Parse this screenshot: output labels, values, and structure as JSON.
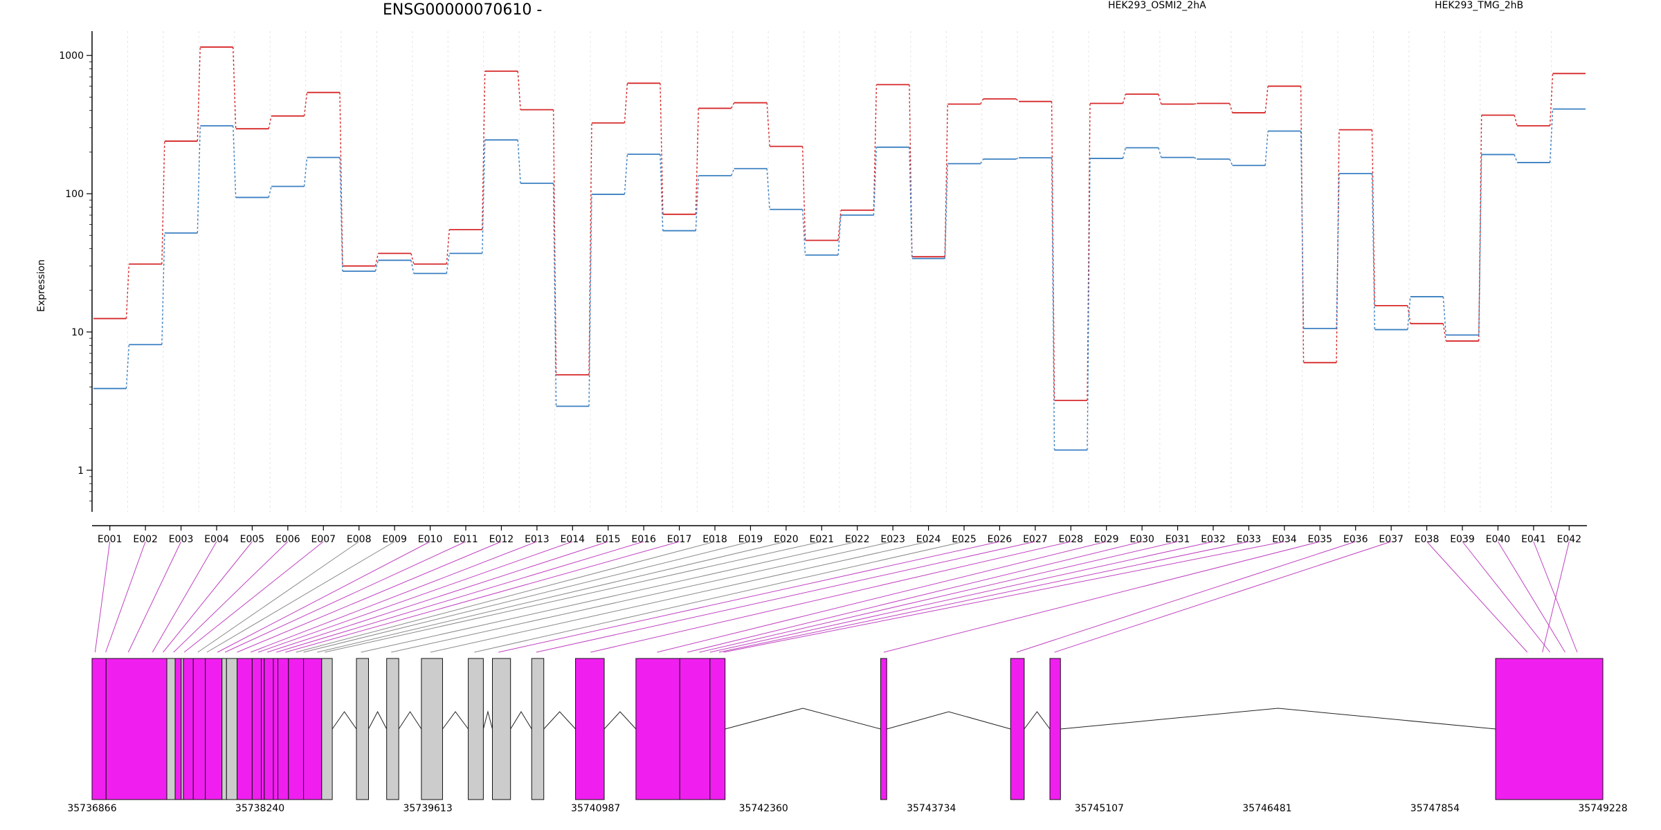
{
  "chart_data": {
    "type": "line",
    "title": "ENSG00000070610 -",
    "ylabel": "Expression",
    "yscale": "log",
    "ylim": [
      0.5,
      1500
    ],
    "yticks": [
      "1",
      "10",
      "100",
      "1000"
    ],
    "categories": [
      "E001",
      "E002",
      "E003",
      "E004",
      "E005",
      "E006",
      "E007",
      "E008",
      "E009",
      "E010",
      "E011",
      "E012",
      "E013",
      "E014",
      "E015",
      "E016",
      "E017",
      "E018",
      "E019",
      "E020",
      "E021",
      "E022",
      "E023",
      "E024",
      "E025",
      "E026",
      "E027",
      "E028",
      "E029",
      "E030",
      "E031",
      "E032",
      "E033",
      "E034",
      "E035",
      "E036",
      "E037",
      "E038",
      "E039",
      "E040",
      "E041",
      "E042"
    ],
    "series": [
      {
        "name": "HEK293_OSMI2_2hA",
        "color": "#d62728",
        "values": [
          12.5,
          31,
          240,
          1150,
          295,
          365,
          540,
          30,
          37,
          31,
          55,
          770,
          405,
          4.9,
          325,
          630,
          71,
          415,
          455,
          220,
          46,
          76,
          615,
          35,
          445,
          485,
          465,
          3.2,
          450,
          525,
          445,
          450,
          385,
          600,
          6.0,
          290,
          15.5,
          11.5,
          8.6,
          370,
          310,
          740
        ]
      },
      {
        "name": "HEK293_TMG_2hB",
        "color": "#3a7fc1",
        "values": [
          3.9,
          8.1,
          52,
          310,
          94,
          113,
          183,
          27.5,
          33,
          26.5,
          37,
          245,
          119,
          2.9,
          99,
          193,
          54,
          135,
          152,
          77,
          36,
          70,
          217,
          34,
          165,
          178,
          182,
          1.4,
          180,
          215,
          183,
          178,
          160,
          284,
          10.6,
          140,
          10.4,
          18,
          9.5,
          192,
          168,
          410
        ]
      }
    ],
    "gene_model": {
      "coordinate_labels": [
        "35736866",
        "35738240",
        "35739613",
        "35740987",
        "35742360",
        "35743734",
        "35745107",
        "35746481",
        "35747854",
        "35749228"
      ],
      "exons": [
        {
          "start": 0.0,
          "end": 0.93,
          "type": "exon"
        },
        {
          "start": 0.93,
          "end": 4.95,
          "type": "exon"
        },
        {
          "start": 4.95,
          "end": 5.5,
          "type": "intron"
        },
        {
          "start": 5.5,
          "end": 5.9,
          "type": "exon"
        },
        {
          "start": 5.9,
          "end": 6.05,
          "type": "intron"
        },
        {
          "start": 6.05,
          "end": 6.7,
          "type": "exon"
        },
        {
          "start": 6.7,
          "end": 7.5,
          "type": "exon"
        },
        {
          "start": 7.5,
          "end": 8.6,
          "type": "exon"
        },
        {
          "start": 8.6,
          "end": 8.9,
          "type": "intron"
        },
        {
          "start": 8.9,
          "end": 9.6,
          "type": "intron"
        },
        {
          "start": 9.6,
          "end": 10.6,
          "type": "exon"
        },
        {
          "start": 10.6,
          "end": 11.2,
          "type": "exon"
        },
        {
          "start": 11.2,
          "end": 11.4,
          "type": "exon"
        },
        {
          "start": 11.4,
          "end": 12.0,
          "type": "exon"
        },
        {
          "start": 12.0,
          "end": 12.3,
          "type": "exon"
        },
        {
          "start": 12.3,
          "end": 13.0,
          "type": "exon"
        },
        {
          "start": 13.0,
          "end": 14.0,
          "type": "exon"
        },
        {
          "start": 14.0,
          "end": 15.2,
          "type": "exon"
        },
        {
          "start": 15.2,
          "end": 15.9,
          "type": "intron"
        },
        {
          "start": 17.5,
          "end": 18.3,
          "type": "intron"
        },
        {
          "start": 19.5,
          "end": 20.3,
          "type": "intron"
        },
        {
          "start": 21.8,
          "end": 23.2,
          "type": "intron"
        },
        {
          "start": 24.9,
          "end": 25.9,
          "type": "intron"
        },
        {
          "start": 26.5,
          "end": 27.7,
          "type": "intron"
        },
        {
          "start": 29.1,
          "end": 29.9,
          "type": "intron"
        },
        {
          "start": 32.0,
          "end": 33.9,
          "type": "exon"
        },
        {
          "start": 36.0,
          "end": 38.9,
          "type": "exon"
        },
        {
          "start": 38.9,
          "end": 40.9,
          "type": "exon"
        },
        {
          "start": 40.9,
          "end": 41.9,
          "type": "exon"
        },
        {
          "start": 52.2,
          "end": 52.6,
          "type": "exon"
        },
        {
          "start": 60.8,
          "end": 61.7,
          "type": "exon"
        },
        {
          "start": 63.4,
          "end": 64.1,
          "type": "exon"
        },
        {
          "start": 92.9,
          "end": 100.0,
          "type": "exon"
        }
      ]
    }
  }
}
